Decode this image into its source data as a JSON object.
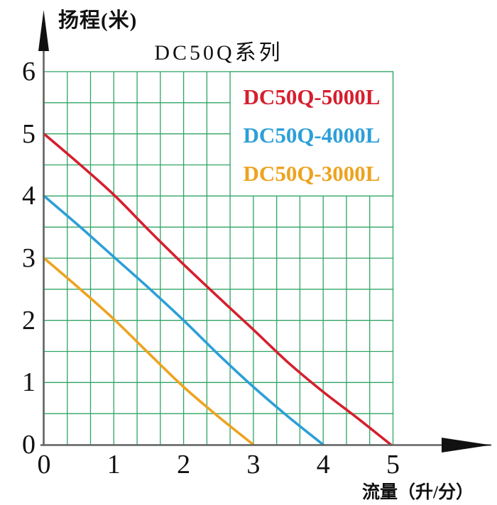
{
  "colors": {
    "background": "#ffffff",
    "grid": "#2fa465",
    "axis_line": "#636363",
    "arrow": "#111111",
    "text": "#111111",
    "series_red": "#d61f2e",
    "series_blue": "#2c9fd8",
    "series_orange": "#eda31f"
  },
  "chart_data": {
    "type": "line",
    "title": "DC50Q系列",
    "ylabel": "扬程(米)",
    "xlabel": "流量（升/分）",
    "xlim": [
      0,
      5
    ],
    "ylim": [
      0,
      6
    ],
    "x_tick_labels": [
      "0",
      "1",
      "2",
      "3",
      "4",
      "5"
    ],
    "y_tick_labels": [
      "6",
      "5",
      "4",
      "3",
      "2",
      "1",
      "0"
    ],
    "grid": {
      "on": true,
      "x_step": 0.3333,
      "y_step": 0.5,
      "color": "#2fa465"
    },
    "legend_position": "top-right",
    "legend_background": "#ffffff",
    "series": [
      {
        "name": "DC50Q-5000L",
        "color": "#d61f2e",
        "points": [
          [
            0,
            5.0
          ],
          [
            0.5,
            4.52
          ],
          [
            1,
            4.02
          ],
          [
            1.5,
            3.45
          ],
          [
            2,
            2.9
          ],
          [
            2.5,
            2.37
          ],
          [
            3,
            1.85
          ],
          [
            3.5,
            1.32
          ],
          [
            4,
            0.85
          ],
          [
            4.5,
            0.42
          ],
          [
            4.97,
            0
          ]
        ]
      },
      {
        "name": "DC50Q-4000L",
        "color": "#2c9fd8",
        "points": [
          [
            0,
            4.0
          ],
          [
            0.5,
            3.52
          ],
          [
            1,
            3.02
          ],
          [
            1.5,
            2.52
          ],
          [
            2,
            2.0
          ],
          [
            2.5,
            1.45
          ],
          [
            3,
            0.93
          ],
          [
            3.5,
            0.45
          ],
          [
            4,
            0
          ]
        ]
      },
      {
        "name": "DC50Q-3000L",
        "color": "#eda31f",
        "points": [
          [
            0,
            3.0
          ],
          [
            0.5,
            2.52
          ],
          [
            1,
            2.02
          ],
          [
            1.5,
            1.47
          ],
          [
            2,
            0.93
          ],
          [
            2.5,
            0.45
          ],
          [
            3,
            0
          ]
        ]
      }
    ]
  }
}
